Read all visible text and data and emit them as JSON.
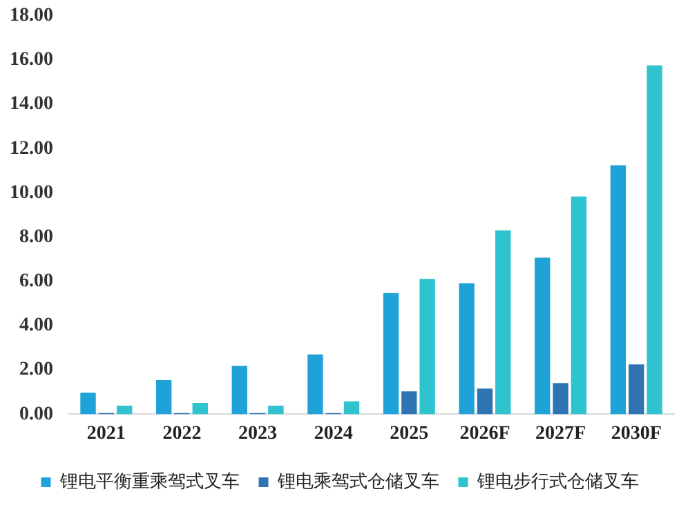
{
  "chart_data": {
    "type": "bar",
    "categories": [
      "2021",
      "2022",
      "2023",
      "2024",
      "2025",
      "2026F",
      "2027F",
      "2030F"
    ],
    "series": [
      {
        "name": "锂电平衡重乘驾式叉车",
        "color": "#1fa2d8",
        "values": [
          0.97,
          1.54,
          2.19,
          2.7,
          5.47,
          5.92,
          7.07,
          11.25
        ]
      },
      {
        "name": "锂电乘驾式仓储叉车",
        "color": "#2e74b5",
        "values": [
          0.05,
          0.05,
          0.05,
          0.05,
          1.03,
          1.16,
          1.41,
          2.25
        ]
      },
      {
        "name": "锂电步行式仓储叉车",
        "color": "#2ec3cf",
        "values": [
          0.39,
          0.51,
          0.39,
          0.58,
          6.11,
          8.3,
          9.84,
          15.76
        ]
      }
    ],
    "ylim": [
      0,
      18
    ],
    "yticks": [
      {
        "value": 0,
        "label": "0.00"
      },
      {
        "value": 2,
        "label": "2.00"
      },
      {
        "value": 4,
        "label": "4.00"
      },
      {
        "value": 6,
        "label": "6.00"
      },
      {
        "value": 8,
        "label": "8.00"
      },
      {
        "value": 10,
        "label": "10.00"
      },
      {
        "value": 12,
        "label": "12.00"
      },
      {
        "value": 14,
        "label": "14.00"
      },
      {
        "value": 16,
        "label": "16.00"
      },
      {
        "value": 18,
        "label": "18.00"
      }
    ],
    "grid": false,
    "legend": "bottom"
  }
}
